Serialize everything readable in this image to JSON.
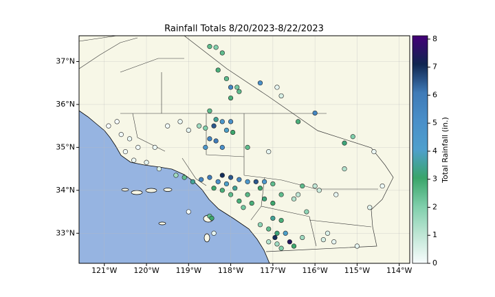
{
  "chart_data": {
    "type": "scatter",
    "title": "Rainfall Totals 8/20/2023-8/22/2023",
    "colorbar_label": "Total Rainfall (in.)",
    "xlim": [
      -121.6,
      -113.75
    ],
    "ylim": [
      32.3,
      37.6
    ],
    "xticks": [
      {
        "value": -121,
        "label": "121°W"
      },
      {
        "value": -120,
        "label": "120°W"
      },
      {
        "value": -119,
        "label": "119°W"
      },
      {
        "value": -118,
        "label": "118°W"
      },
      {
        "value": -117,
        "label": "117°W"
      },
      {
        "value": -116,
        "label": "116°W"
      },
      {
        "value": -115,
        "label": "115°W"
      },
      {
        "value": -114,
        "label": "114°W"
      }
    ],
    "yticks": [
      {
        "value": 33,
        "label": "33°N"
      },
      {
        "value": 34,
        "label": "34°N"
      },
      {
        "value": 35,
        "label": "35°N"
      },
      {
        "value": 36,
        "label": "36°N"
      },
      {
        "value": 37,
        "label": "37°N"
      }
    ],
    "grid": true,
    "clim": [
      0,
      8.12
    ],
    "cticks": [
      0,
      1,
      2,
      3,
      4,
      5,
      6,
      7,
      8
    ],
    "colormap": [
      "#f7fcfd",
      "#bfe6d5",
      "#7fcfab",
      "#3aa56a",
      "#4f9fcd",
      "#4a8fc9",
      "#3f7ab7",
      "#0f2550",
      "#440078"
    ],
    "x": [
      -118.5,
      -118.35,
      -118.2,
      -118.3,
      -118.1,
      -118.0,
      -117.85,
      -118.0,
      -117.3,
      -116.9,
      -116.8,
      -117.8,
      -118.5,
      -118.35,
      -118.2,
      -118.0,
      -118.4,
      -118.6,
      -118.1,
      -118.5,
      -118.35,
      -118.6,
      -118.2,
      -117.95,
      -118.75,
      -119.0,
      -119.2,
      -119.5,
      -120.7,
      -120.6,
      -120.4,
      -120.5,
      -120.3,
      -120.0,
      -119.7,
      -120.9,
      -120.2,
      -119.8,
      -119.3,
      -119.1,
      -118.9,
      -118.7,
      -118.5,
      -118.3,
      -118.2,
      -118.0,
      -117.8,
      -117.6,
      -118.4,
      -118.2,
      -118.0,
      -117.9,
      -118.1,
      -117.4,
      -117.2,
      -117.0,
      -117.3,
      -117.6,
      -117.8,
      -117.7,
      -117.5,
      -117.2,
      -117.0,
      -116.8,
      -116.5,
      -116.4,
      -116.2,
      -117.3,
      -117.1,
      -116.9,
      -116.7,
      -116.6,
      -116.9,
      -117.1,
      -116.8,
      -116.5,
      -116.3,
      -117.0,
      -116.8,
      -116.95,
      -116.3,
      -116.0,
      -115.9,
      -115.5,
      -115.3,
      -115.1,
      -115.3,
      -116.0,
      -116.4,
      -115.7,
      -115.55,
      -115.8,
      -114.7,
      -114.6,
      -114.4,
      -115.0,
      -117.1,
      -117.6,
      -119.0,
      -118.5,
      -118.45,
      -118.4
    ],
    "y": [
      37.35,
      37.33,
      37.2,
      36.8,
      36.6,
      36.4,
      36.4,
      36.15,
      36.5,
      36.4,
      36.2,
      36.3,
      35.85,
      35.65,
      35.6,
      35.6,
      35.5,
      35.45,
      35.4,
      35.2,
      35.15,
      35.0,
      35.0,
      35.35,
      35.5,
      35.4,
      35.6,
      35.5,
      35.6,
      35.3,
      35.2,
      34.9,
      34.7,
      34.65,
      34.5,
      35.5,
      35.0,
      35.0,
      34.35,
      34.3,
      34.2,
      34.25,
      34.3,
      34.2,
      34.35,
      34.3,
      34.25,
      34.2,
      34.05,
      34.0,
      33.9,
      34.05,
      34.15,
      34.2,
      34.2,
      34.15,
      34.05,
      33.9,
      33.75,
      33.6,
      33.7,
      33.8,
      33.7,
      33.9,
      33.8,
      33.9,
      33.5,
      33.2,
      33.1,
      33.0,
      33.0,
      32.8,
      32.75,
      32.8,
      32.65,
      32.7,
      32.9,
      33.35,
      33.3,
      32.9,
      34.1,
      34.1,
      34.0,
      33.9,
      35.1,
      35.25,
      34.5,
      35.8,
      35.6,
      33.0,
      32.8,
      32.85,
      33.6,
      34.9,
      34.1,
      32.7,
      34.9,
      35.0,
      33.5,
      33.4,
      33.35,
      33.0
    ],
    "values": [
      2.5,
      2.0,
      2.5,
      2.8,
      2.5,
      5.5,
      2.2,
      2.8,
      5.0,
      0.3,
      0.6,
      2.5,
      2.5,
      3.5,
      4.5,
      5.0,
      6.5,
      2.0,
      4.0,
      5.5,
      6.0,
      4.5,
      5.0,
      3.0,
      1.5,
      0.3,
      0.2,
      0.1,
      0.0,
      0.1,
      0.2,
      0.1,
      0.2,
      0.3,
      0.5,
      0.0,
      0.1,
      0.2,
      1.5,
      2.5,
      3.5,
      5.5,
      6.0,
      5.0,
      7.0,
      6.5,
      5.5,
      4.5,
      3.0,
      2.8,
      2.5,
      3.5,
      4.0,
      6.5,
      4.5,
      2.5,
      3.0,
      2.6,
      2.8,
      2.2,
      2.8,
      3.2,
      3.0,
      2.5,
      1.2,
      1.0,
      1.8,
      1.8,
      2.5,
      3.2,
      4.0,
      7.5,
      1.5,
      1.2,
      2.0,
      3.0,
      1.5,
      3.5,
      2.8,
      7.0,
      2.5,
      1.0,
      0.8,
      0.3,
      3.2,
      2.0,
      1.2,
      5.5,
      2.8,
      0.5,
      0.3,
      0.6,
      0.4,
      0.2,
      0.2,
      0.3,
      0.3,
      2.5,
      0.1,
      2.5,
      3.0,
      0.3
    ]
  }
}
